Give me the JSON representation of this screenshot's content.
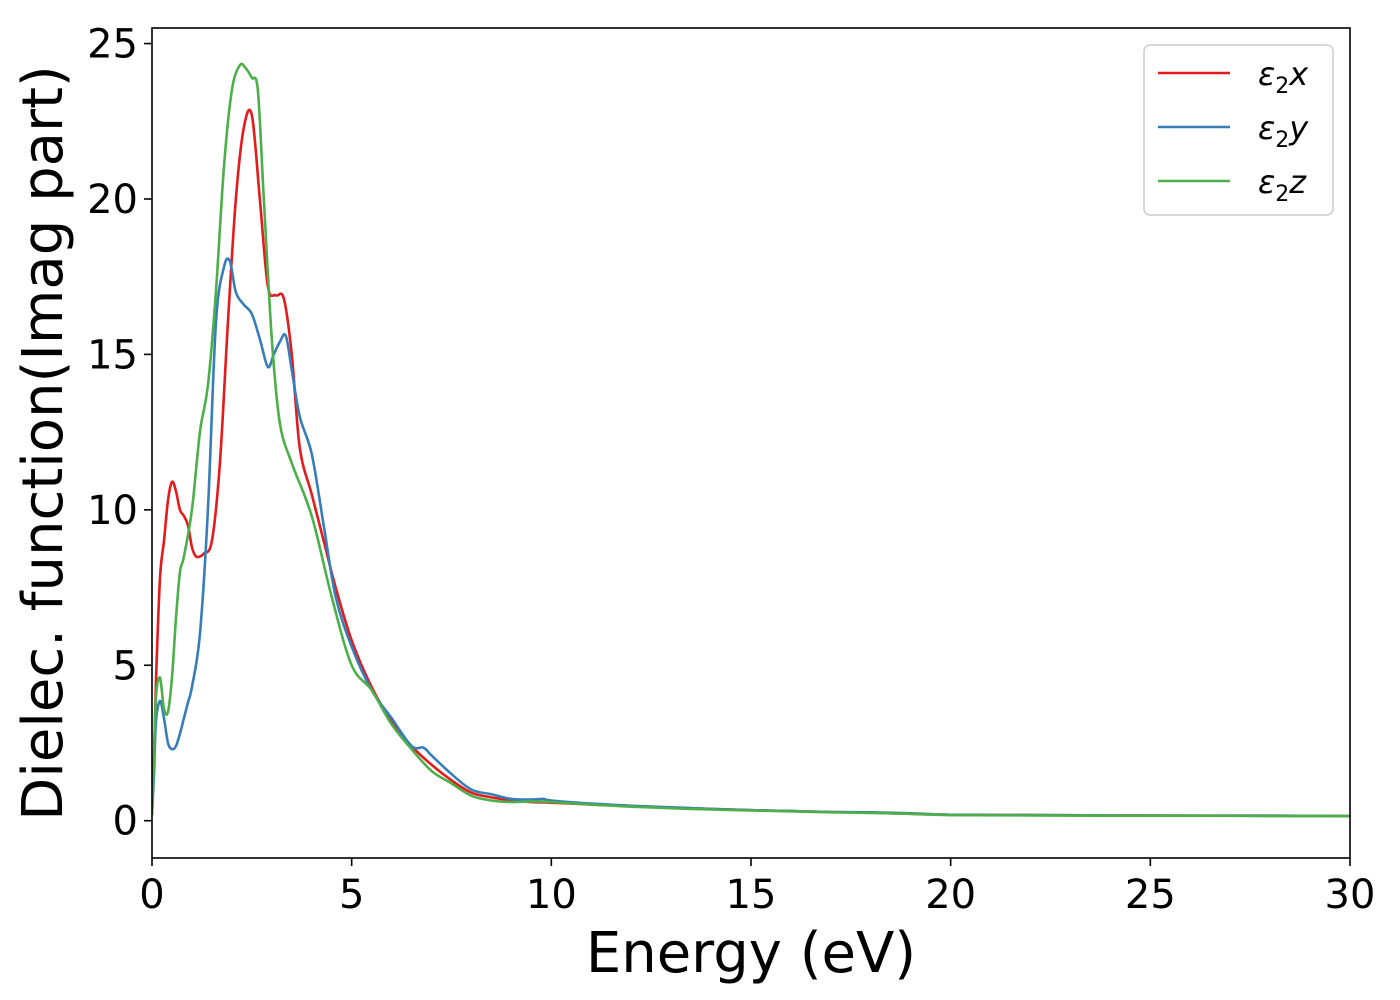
{
  "chart_data": {
    "type": "line",
    "xlabel": "Energy (eV)",
    "ylabel": "Dielec. function(Imag part)",
    "xlim": [
      0,
      30
    ],
    "ylim": [
      -1.2,
      25.5
    ],
    "xticks": [
      0,
      5,
      10,
      15,
      20,
      25,
      30
    ],
    "yticks": [
      0,
      5,
      10,
      15,
      20,
      25
    ],
    "grid": false,
    "legend_position": "top-right",
    "series": [
      {
        "name": "ε2x",
        "legend_symbol": "ε",
        "legend_sub": "2",
        "legend_var": "x",
        "color": "#e41a1c",
        "x": [
          0,
          0.05,
          0.1,
          0.2,
          0.3,
          0.4,
          0.5,
          0.6,
          0.7,
          0.8,
          0.9,
          1.0,
          1.1,
          1.2,
          1.3,
          1.5,
          1.7,
          1.9,
          2.1,
          2.3,
          2.5,
          2.7,
          2.9,
          3.1,
          3.3,
          3.5,
          3.7,
          4.0,
          4.3,
          4.6,
          5.0,
          5.5,
          6.0,
          6.5,
          7.0,
          7.5,
          8.0,
          8.5,
          9.0,
          9.5,
          10.0,
          11.0,
          12.0,
          13.0,
          14.0,
          15.0,
          16.0,
          17.0,
          18.0,
          19.0,
          20.0,
          22.0,
          24.0,
          26.0,
          28.0,
          30.0
        ],
        "y": [
          0.2,
          2.0,
          4.5,
          7.8,
          9.0,
          10.3,
          10.9,
          10.6,
          10.0,
          9.8,
          9.5,
          8.8,
          8.5,
          8.5,
          8.6,
          9.0,
          11.5,
          16.0,
          20.0,
          22.3,
          22.7,
          20.0,
          17.2,
          16.9,
          16.8,
          15.0,
          12.0,
          10.5,
          9.0,
          7.5,
          5.8,
          4.3,
          3.2,
          2.4,
          1.8,
          1.3,
          0.9,
          0.75,
          0.65,
          0.6,
          0.58,
          0.52,
          0.47,
          0.42,
          0.38,
          0.34,
          0.31,
          0.28,
          0.26,
          0.22,
          0.19,
          0.18,
          0.17,
          0.16,
          0.16,
          0.15
        ]
      },
      {
        "name": "ε2y",
        "legend_symbol": "ε",
        "legend_sub": "2",
        "legend_var": "y",
        "color": "#377eb8",
        "x": [
          0,
          0.05,
          0.1,
          0.2,
          0.3,
          0.4,
          0.5,
          0.6,
          0.7,
          0.8,
          0.9,
          1.0,
          1.2,
          1.4,
          1.6,
          1.8,
          1.95,
          2.1,
          2.3,
          2.5,
          2.7,
          2.9,
          3.05,
          3.2,
          3.35,
          3.5,
          3.7,
          4.0,
          4.3,
          4.6,
          5.0,
          5.5,
          6.0,
          6.5,
          6.8,
          7.0,
          7.5,
          8.0,
          8.5,
          9.0,
          9.5,
          9.8,
          10.0,
          11.0,
          12.0,
          13.0,
          14.0,
          15.0,
          16.0,
          17.0,
          18.0,
          19.0,
          20.0,
          22.0,
          24.0,
          26.0,
          28.0,
          30.0
        ],
        "y": [
          0.2,
          1.5,
          3.2,
          3.85,
          3.3,
          2.5,
          2.3,
          2.4,
          2.8,
          3.3,
          3.8,
          4.3,
          6.0,
          10.0,
          16.0,
          17.8,
          18.0,
          17.0,
          16.6,
          16.3,
          15.5,
          14.6,
          15.0,
          15.4,
          15.6,
          14.5,
          13.0,
          11.8,
          9.5,
          7.2,
          5.6,
          4.2,
          3.3,
          2.4,
          2.35,
          2.1,
          1.5,
          1.0,
          0.85,
          0.7,
          0.68,
          0.7,
          0.65,
          0.55,
          0.48,
          0.43,
          0.38,
          0.34,
          0.31,
          0.28,
          0.27,
          0.24,
          0.19,
          0.18,
          0.17,
          0.16,
          0.16,
          0.15
        ]
      },
      {
        "name": "ε2z",
        "legend_symbol": "ε",
        "legend_sub": "2",
        "legend_var": "z",
        "color": "#4daf4a",
        "x": [
          0,
          0.05,
          0.1,
          0.2,
          0.3,
          0.4,
          0.5,
          0.6,
          0.7,
          0.8,
          1.0,
          1.2,
          1.4,
          1.6,
          1.8,
          2.0,
          2.2,
          2.35,
          2.5,
          2.65,
          2.8,
          3.0,
          3.2,
          3.5,
          4.0,
          4.5,
          5.0,
          5.5,
          6.0,
          6.5,
          7.0,
          7.5,
          8.0,
          8.5,
          9.0,
          9.5,
          10.0,
          11.0,
          12.0,
          13.0,
          14.0,
          15.0,
          16.0,
          17.0,
          18.0,
          19.0,
          20.0,
          22.0,
          24.0,
          26.0,
          28.0,
          30.0
        ],
        "y": [
          0.2,
          2.0,
          4.0,
          4.6,
          3.6,
          3.5,
          4.6,
          6.5,
          8.0,
          8.5,
          10.0,
          12.5,
          14.0,
          17.0,
          21.0,
          23.5,
          24.3,
          24.2,
          23.9,
          23.5,
          20.0,
          15.5,
          12.8,
          11.5,
          9.8,
          7.2,
          5.0,
          4.2,
          3.1,
          2.3,
          1.6,
          1.2,
          0.8,
          0.65,
          0.6,
          0.62,
          0.6,
          0.52,
          0.45,
          0.4,
          0.36,
          0.33,
          0.3,
          0.27,
          0.25,
          0.22,
          0.18,
          0.17,
          0.16,
          0.16,
          0.15,
          0.15
        ]
      }
    ]
  }
}
